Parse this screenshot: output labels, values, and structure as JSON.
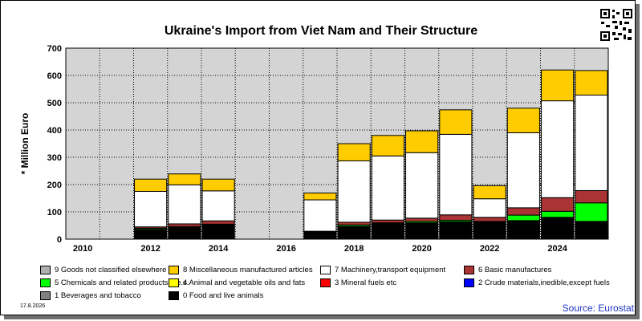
{
  "chart_data": {
    "type": "bar",
    "stacked": true,
    "title": "Ukraine's Import from Viet Nam and Their Structure",
    "ylabel": "* Million Euro",
    "xlabel": "",
    "ylim": [
      0,
      700
    ],
    "yticks": [
      0,
      100,
      200,
      300,
      400,
      500,
      600,
      700
    ],
    "categories": [
      "2010",
      "2011",
      "2012",
      "2013",
      "2014",
      "2015",
      "2016",
      "2017",
      "2018",
      "2019",
      "2020",
      "2021",
      "2022",
      "2023",
      "2024",
      "2025"
    ],
    "xtick_labels": [
      "2010",
      "",
      "2012",
      "",
      "2014",
      "",
      "2016",
      "",
      "2018",
      "",
      "2020",
      "",
      "2022",
      "",
      "2024",
      ""
    ],
    "grid": true,
    "series": [
      {
        "name": "0 Food and live animals",
        "color": "#000000",
        "values": [
          0,
          0,
          36,
          44,
          53,
          0,
          0,
          25,
          47,
          57,
          60,
          64,
          62,
          68,
          80,
          65
        ]
      },
      {
        "name": "1 Beverages and tobacco",
        "color": "#808080",
        "values": [
          0,
          0,
          0,
          0,
          0,
          0,
          0,
          0,
          0,
          0,
          0,
          0,
          0,
          0,
          0,
          0
        ]
      },
      {
        "name": "2 Crude materials,inedible,except fuels",
        "color": "#0000ff",
        "values": [
          0,
          0,
          0,
          0,
          0,
          0,
          0,
          0,
          0,
          0,
          0,
          0,
          0,
          0,
          0,
          0
        ]
      },
      {
        "name": "3 Mineral fuels etc",
        "color": "#ff0000",
        "values": [
          0,
          0,
          0,
          0,
          0,
          0,
          0,
          0,
          0,
          0,
          0,
          0,
          0,
          0,
          0,
          0
        ]
      },
      {
        "name": "4 Animal and vegetable oils and fats",
        "color": "#ffff00",
        "values": [
          0,
          0,
          0,
          0,
          0,
          0,
          0,
          0,
          0,
          0,
          0,
          0,
          0,
          0,
          0,
          0
        ]
      },
      {
        "name": "5 Chemicals and related products,n.e.s.",
        "color": "#00ff00",
        "values": [
          0,
          0,
          4,
          2,
          2,
          0,
          0,
          1,
          5,
          3,
          5,
          5,
          3,
          20,
          22,
          68
        ]
      },
      {
        "name": "6 Basic manufactures",
        "color": "#aa3333",
        "values": [
          0,
          0,
          5,
          10,
          12,
          0,
          0,
          3,
          10,
          10,
          12,
          20,
          15,
          27,
          50,
          45
        ]
      },
      {
        "name": "7 Machinery,transport equipment",
        "color": "#ffffff",
        "values": [
          0,
          0,
          130,
          143,
          110,
          0,
          0,
          115,
          225,
          235,
          240,
          295,
          68,
          275,
          355,
          350
        ]
      },
      {
        "name": "8 Miscellaneous manufactured articles",
        "color": "#ffcc00",
        "values": [
          0,
          0,
          45,
          40,
          43,
          0,
          0,
          25,
          63,
          75,
          80,
          90,
          48,
          90,
          113,
          90
        ]
      },
      {
        "name": "9 Goods not classified elsewhere",
        "color": "#b0b0b0",
        "values": [
          0,
          0,
          0,
          0,
          0,
          0,
          0,
          0,
          0,
          0,
          0,
          0,
          0,
          0,
          0,
          0
        ]
      }
    ]
  },
  "legend": [
    {
      "label": "9 Goods not classified elsewhere",
      "color": "#b0b0b0"
    },
    {
      "label": "8 Miscellaneous manufactured articles",
      "color": "#ffcc00"
    },
    {
      "label": "7 Machinery,transport equipment",
      "color": "#ffffff"
    },
    {
      "label": "6 Basic manufactures",
      "color": "#aa3333"
    },
    {
      "label": "5 Chemicals and related products,n.e.s.",
      "color": "#00ff00"
    },
    {
      "label": "4 Animal and vegetable oils and fats",
      "color": "#ffff00"
    },
    {
      "label": "3 Mineral fuels etc",
      "color": "#ff0000"
    },
    {
      "label": "2 Crude materials,inedible,except fuels",
      "color": "#0000ff"
    },
    {
      "label": "1 Beverages and tobacco",
      "color": "#808080"
    },
    {
      "label": "0 Food and live animals",
      "color": "#000000"
    }
  ],
  "footer": {
    "date": "17.8.2026",
    "source": "Source: Eurostat"
  }
}
